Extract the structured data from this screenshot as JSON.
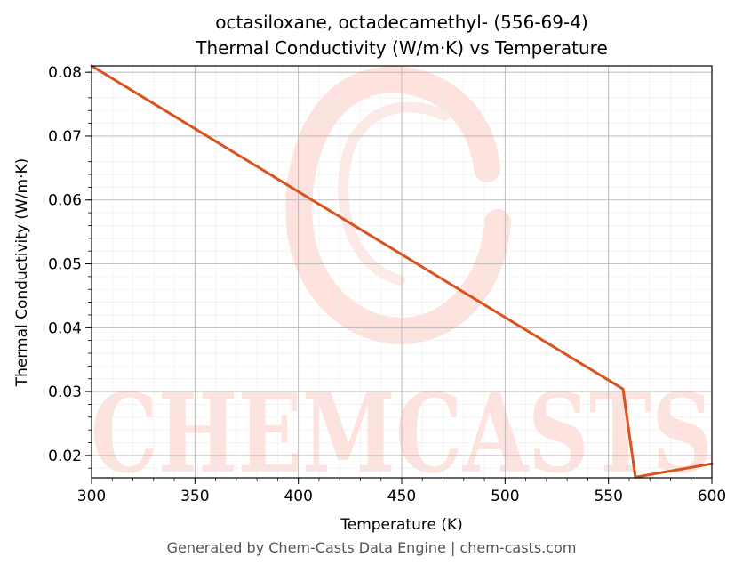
{
  "chart_data": {
    "type": "line",
    "title_line1": "octasiloxane, octadecamethyl- (556-69-4)",
    "title_line2": "Thermal Conductivity (W/m·K) vs Temperature",
    "xlabel": "Temperature (K)",
    "ylabel": "Thermal Conductivity (W/m·K)",
    "xlim": [
      300,
      600
    ],
    "ylim": [
      0.0165,
      0.081
    ],
    "xticks": [
      300,
      350,
      400,
      450,
      500,
      550,
      600
    ],
    "yticks": [
      0.02,
      0.03,
      0.04,
      0.05,
      0.06,
      0.07,
      0.08
    ],
    "xtick_labels": [
      "300",
      "350",
      "400",
      "450",
      "500",
      "550",
      "600"
    ],
    "ytick_labels": [
      "0.02",
      "0.03",
      "0.04",
      "0.05",
      "0.06",
      "0.07",
      "0.08"
    ],
    "grid": true,
    "series": [
      {
        "color": "#d95320",
        "x": [
          300,
          557,
          563,
          600
        ],
        "y": [
          0.081,
          0.0304,
          0.0166,
          0.0187
        ]
      }
    ]
  },
  "watermark": {
    "text": "CHEMCASTS",
    "color": "#fde2de"
  },
  "footer": "Generated by Chem-Casts Data Engine | chem-casts.com"
}
